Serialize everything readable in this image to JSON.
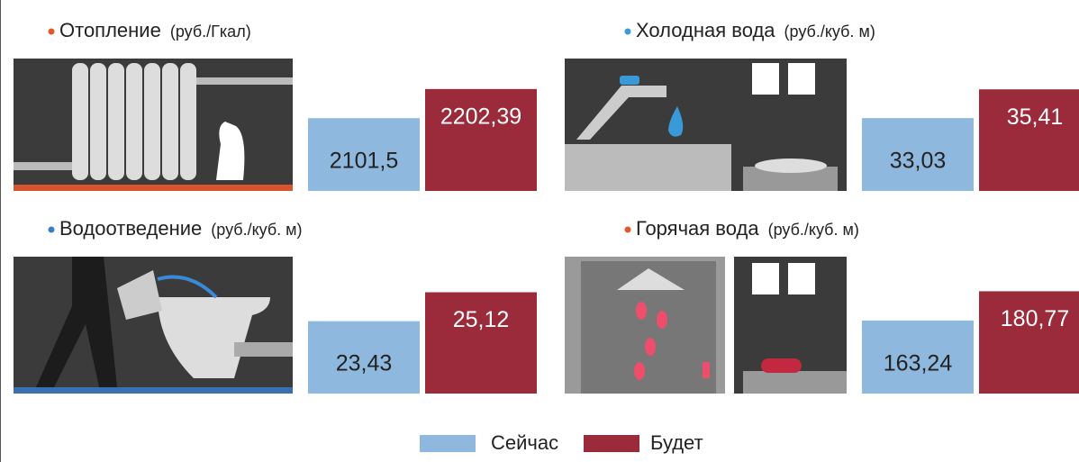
{
  "chart_data": [
    {
      "type": "bar",
      "title": "Отопление",
      "subtitle": "(руб./Гкал)",
      "series": [
        {
          "name": "Сейчас",
          "color": "#8fb8de",
          "values": [
            2101.5
          ],
          "value_labels": [
            "2101,5"
          ]
        },
        {
          "name": "Будет",
          "color": "#9b2a3b",
          "values": [
            2202.39
          ],
          "value_labels": [
            "2202,39"
          ]
        }
      ],
      "ylim": [
        1850,
        2205
      ]
    },
    {
      "type": "bar",
      "title": "Холодная вода",
      "subtitle": "(руб./куб. м)",
      "series": [
        {
          "name": "Сейчас",
          "color": "#8fb8de",
          "values": [
            33.03
          ],
          "value_labels": [
            "33,03"
          ]
        },
        {
          "name": "Будет",
          "color": "#9b2a3b",
          "values": [
            35.41
          ],
          "value_labels": [
            "35,41"
          ]
        }
      ],
      "ylim": [
        27,
        35.5
      ]
    },
    {
      "type": "bar",
      "title": "Водоотведение",
      "subtitle": "(руб./куб. м)",
      "series": [
        {
          "name": "Сейчас",
          "color": "#8fb8de",
          "values": [
            23.43
          ],
          "value_labels": [
            "23,43"
          ]
        },
        {
          "name": "Будет",
          "color": "#9b2a3b",
          "values": [
            25.12
          ],
          "value_labels": [
            "25,12"
          ]
        }
      ],
      "ylim": [
        19.2,
        25.2
      ]
    },
    {
      "type": "bar",
      "title": "Горячая вода",
      "subtitle": "(руб./куб. м)",
      "series": [
        {
          "name": "Сейчас",
          "color": "#8fb8de",
          "values": [
            163.24
          ],
          "value_labels": [
            "163,24"
          ]
        },
        {
          "name": "Будет",
          "color": "#9b2a3b",
          "values": [
            180.77
          ],
          "value_labels": [
            "180,77"
          ]
        }
      ],
      "ylim": [
        119.4,
        181
      ]
    }
  ]
}
